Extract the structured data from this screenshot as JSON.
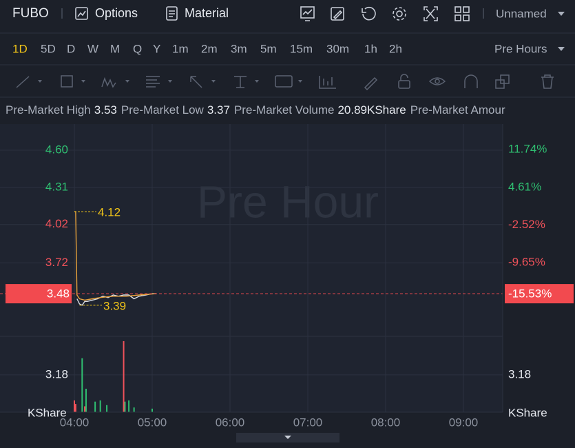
{
  "header": {
    "symbol": "FUBO",
    "menu": [
      "Options",
      "Material"
    ],
    "layout_name": "Unnamed"
  },
  "timeframes": {
    "items": [
      "1D",
      "5D",
      "D",
      "W",
      "M",
      "Q",
      "Y",
      "1m",
      "2m",
      "3m",
      "5m",
      "15m",
      "30m",
      "1h",
      "2h"
    ],
    "active_index": 0,
    "session": "Pre Hours"
  },
  "info": {
    "items": [
      {
        "label": "Pre-Market High",
        "value": 3.53
      },
      {
        "label": "Pre-Market Low",
        "value": 3.37
      },
      {
        "label": "Pre-Market Volume",
        "value": "20.89KShare"
      },
      {
        "label": "Pre-Market Amour"
      }
    ]
  },
  "chart": {
    "watermark": "Pre Hour",
    "ylim": [
      3.147,
      4.804
    ],
    "yticks": [
      {
        "value": 4.6,
        "label": "4.60"
      },
      4.31,
      4.02,
      3.72
    ],
    "ytick_colors": [
      "#2fbf71",
      "#2fbf71",
      "#f0525a",
      "#f0525a"
    ],
    "y2lim": [
      -23.62,
      16.6
    ],
    "y2ticks": [
      {
        "value": 11.74,
        "label": "11.74%"
      },
      {
        "value": 4.61,
        "label": "4.61%"
      },
      {
        "value": -2.52,
        "label": "-2.52%"
      },
      {
        "value": -9.65,
        "label": "-9.65%"
      }
    ],
    "xlim": [
      -57.35,
      330.27
    ],
    "xticks": [
      {
        "value": 0,
        "label": "04:00"
      },
      {
        "value": 60,
        "label": "05:00"
      },
      {
        "value": 120,
        "label": "06:00"
      },
      {
        "value": 180,
        "label": "07:00"
      },
      {
        "value": 240,
        "label": "08:00"
      },
      {
        "value": 300,
        "label": "09:00"
      }
    ],
    "current": {
      "value": 3.48,
      "change": {
        "value": -15.53,
        "label": "-15.53%"
      },
      "color": "#f24a4f"
    },
    "annotations": [
      {
        "x": 0,
        "value": 4.12
      },
      {
        "x": 4,
        "value": 3.39
      }
    ],
    "series": [
      {
        "name": "price",
        "color": "#d9dde4",
        "x": [
          2,
          4,
          6,
          8,
          10,
          14,
          18,
          22,
          26,
          30,
          34,
          38,
          42,
          46,
          50,
          55,
          60,
          63
        ],
        "values": [
          3.44,
          3.4,
          3.39,
          3.42,
          3.42,
          3.43,
          3.44,
          3.46,
          3.45,
          3.47,
          3.46,
          3.47,
          3.47,
          3.44,
          3.46,
          3.47,
          3.48,
          3.48
        ]
      },
      {
        "name": "average",
        "color": "#e8a33c",
        "x": [
          0,
          1,
          2,
          4,
          8,
          14,
          20,
          30,
          40,
          50,
          63
        ],
        "values": [
          4.12,
          4.12,
          3.47,
          3.44,
          3.43,
          3.44,
          3.45,
          3.46,
          3.46,
          3.47,
          3.48
        ]
      }
    ],
    "volume": {
      "unit": "KShare",
      "vlim": [
        0,
        6.47
      ],
      "vticks": [
        3.18
      ],
      "series": [
        {
          "name": "up",
          "color": "#2fbf71",
          "x": [
            6,
            9,
            16,
            20,
            25,
            39,
            42,
            46,
            60
          ],
          "values": [
            4.6,
            2.0,
            0.9,
            1.0,
            0.6,
            0.9,
            1.0,
            0.4,
            0.3
          ]
        },
        {
          "name": "down",
          "color": "#f0525a",
          "x": [
            0,
            1,
            8,
            38
          ],
          "values": [
            1.0,
            0.7,
            0.5,
            6.06
          ]
        }
      ]
    }
  }
}
